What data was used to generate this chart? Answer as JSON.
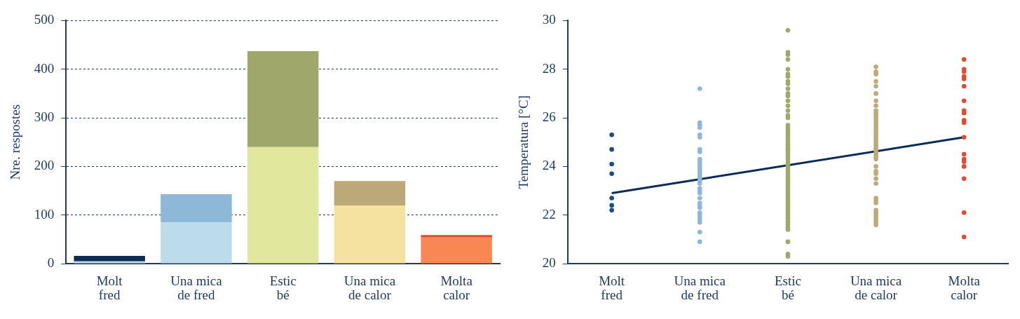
{
  "chart_data": [
    {
      "type": "bar",
      "ylabel": "Nre. respostes",
      "categories": [
        "Molt fred",
        "Una mica de fred",
        "Estic bé",
        "Una mica de calor",
        "Molta calor"
      ],
      "stacked": true,
      "ylim": [
        0,
        500
      ],
      "yticks": [
        0,
        100,
        200,
        300,
        400,
        500
      ],
      "grid": "y",
      "legend": false,
      "series": [
        {
          "colors": [
            "#bcdcec",
            "#bcdcec",
            "#e1e89e",
            "#f6e2a0",
            "#f88754"
          ],
          "values": [
            5,
            85,
            240,
            119,
            54
          ]
        },
        {
          "colors": [
            "#0b2c50",
            "#8db8d8",
            "#9fa86a",
            "#bca978",
            "#e04a30"
          ],
          "values": [
            11,
            58,
            197,
            51,
            5
          ]
        }
      ]
    },
    {
      "type": "scatter",
      "ylabel": "Temperatura [°C]",
      "categories": [
        "Molt fred",
        "Una mica de fred",
        "Estic bé",
        "Una mica de calor",
        "Molta calor"
      ],
      "ylim": [
        20,
        30
      ],
      "yticks": [
        20,
        22,
        24,
        26,
        28,
        30
      ],
      "grid": false,
      "legend": false,
      "marker": "circle",
      "series": [
        {
          "color": "#1a4c85",
          "x": [
            "Molt fred",
            "Molt fred",
            "Molt fred",
            "Molt fred",
            "Molt fred",
            "Molt fred",
            "Molt fred"
          ],
          "values": [
            25.3,
            24.7,
            24.1,
            23.7,
            22.7,
            22.4,
            22.2
          ]
        },
        {
          "color": "#8db8dc",
          "x": [
            "Una mica de fred",
            "Una mica de fred",
            "Una mica de fred",
            "Una mica de fred",
            "Una mica de fred",
            "Una mica de fred",
            "Una mica de fred",
            "Una mica de fred",
            "Una mica de fred",
            "Una mica de fred",
            "Una mica de fred",
            "Una mica de fred",
            "Una mica de fred",
            "Una mica de fred",
            "Una mica de fred",
            "Una mica de fred",
            "Una mica de fred",
            "Una mica de fred",
            "Una mica de fred",
            "Una mica de fred",
            "Una mica de fred",
            "Una mica de fred",
            "Una mica de fred",
            "Una mica de fred",
            "Una mica de fred",
            "Una mica de fred",
            "Una mica de fred",
            "Una mica de fred",
            "Una mica de fred",
            "Una mica de fred",
            "Una mica de fred",
            "Una mica de fred",
            "Una mica de fred"
          ],
          "values": [
            27.2,
            25.8,
            25.7,
            25.6,
            25.3,
            25.2,
            24.7,
            24.6,
            24.3,
            24.2,
            24.1,
            24.0,
            23.9,
            23.8,
            23.7,
            23.6,
            23.5,
            23.4,
            23.3,
            23.1,
            23.0,
            22.9,
            22.7,
            22.5,
            22.4,
            22.3,
            22.1,
            22.0,
            21.9,
            21.8,
            21.7,
            21.3,
            20.9
          ]
        },
        {
          "color": "#a0a86a",
          "x": [
            "Estic bé",
            "Estic bé",
            "Estic bé",
            "Estic bé",
            "Estic bé",
            "Estic bé",
            "Estic bé",
            "Estic bé",
            "Estic bé",
            "Estic bé",
            "Estic bé",
            "Estic bé",
            "Estic bé",
            "Estic bé",
            "Estic bé",
            "Estic bé",
            "Estic bé",
            "Estic bé",
            "Estic bé",
            "Estic bé",
            "Estic bé",
            "Estic bé",
            "Estic bé",
            "Estic bé",
            "Estic bé",
            "Estic bé",
            "Estic bé",
            "Estic bé",
            "Estic bé",
            "Estic bé",
            "Estic bé",
            "Estic bé",
            "Estic bé",
            "Estic bé",
            "Estic bé",
            "Estic bé",
            "Estic bé",
            "Estic bé",
            "Estic bé",
            "Estic bé",
            "Estic bé",
            "Estic bé",
            "Estic bé",
            "Estic bé",
            "Estic bé",
            "Estic bé",
            "Estic bé",
            "Estic bé",
            "Estic bé",
            "Estic bé",
            "Estic bé",
            "Estic bé",
            "Estic bé",
            "Estic bé",
            "Estic bé",
            "Estic bé",
            "Estic bé",
            "Estic bé",
            "Estic bé",
            "Estic bé",
            "Estic bé",
            "Estic bé",
            "Estic bé",
            "Estic bé"
          ],
          "values": [
            29.6,
            28.7,
            28.6,
            28.4,
            28.0,
            27.8,
            27.7,
            27.5,
            27.4,
            27.2,
            27.0,
            26.9,
            26.7,
            26.5,
            26.3,
            26.1,
            26.0,
            25.7,
            25.6,
            25.5,
            25.4,
            25.3,
            25.2,
            25.1,
            25.0,
            24.9,
            24.8,
            24.7,
            24.6,
            24.5,
            24.4,
            24.3,
            24.2,
            24.1,
            24.0,
            23.9,
            23.8,
            23.7,
            23.6,
            23.5,
            23.4,
            23.3,
            23.2,
            23.1,
            23.0,
            22.9,
            22.8,
            22.7,
            22.6,
            22.5,
            22.4,
            22.3,
            22.2,
            22.1,
            22.0,
            21.9,
            21.8,
            21.7,
            21.6,
            21.5,
            21.4,
            20.9,
            20.4,
            20.3
          ]
        },
        {
          "color": "#bcab78",
          "x": [
            "Una mica de calor",
            "Una mica de calor",
            "Una mica de calor",
            "Una mica de calor",
            "Una mica de calor",
            "Una mica de calor",
            "Una mica de calor",
            "Una mica de calor",
            "Una mica de calor",
            "Una mica de calor",
            "Una mica de calor",
            "Una mica de calor",
            "Una mica de calor",
            "Una mica de calor",
            "Una mica de calor",
            "Una mica de calor",
            "Una mica de calor",
            "Una mica de calor",
            "Una mica de calor",
            "Una mica de calor",
            "Una mica de calor",
            "Una mica de calor",
            "Una mica de calor",
            "Una mica de calor",
            "Una mica de calor",
            "Una mica de calor",
            "Una mica de calor",
            "Una mica de calor",
            "Una mica de calor",
            "Una mica de calor",
            "Una mica de calor",
            "Una mica de calor",
            "Una mica de calor",
            "Una mica de calor",
            "Una mica de calor",
            "Una mica de calor",
            "Una mica de calor",
            "Una mica de calor",
            "Una mica de calor",
            "Una mica de calor",
            "Una mica de calor",
            "Una mica de calor",
            "Una mica de calor",
            "Una mica de calor"
          ],
          "values": [
            28.1,
            27.9,
            27.8,
            27.5,
            27.3,
            27.0,
            26.7,
            26.5,
            26.3,
            26.2,
            26.1,
            26.0,
            25.9,
            25.8,
            25.7,
            25.6,
            25.5,
            25.4,
            25.3,
            25.2,
            25.1,
            25.0,
            24.9,
            24.8,
            24.7,
            24.6,
            24.5,
            24.4,
            24.3,
            24.0,
            23.8,
            23.7,
            23.5,
            23.3,
            22.7,
            22.6,
            22.5,
            22.2,
            22.1,
            22.0,
            21.9,
            21.8,
            21.7,
            21.6
          ]
        },
        {
          "color": "#e24a33",
          "x": [
            "Molta calor",
            "Molta calor",
            "Molta calor",
            "Molta calor",
            "Molta calor",
            "Molta calor",
            "Molta calor",
            "Molta calor",
            "Molta calor",
            "Molta calor",
            "Molta calor",
            "Molta calor",
            "Molta calor",
            "Molta calor",
            "Molta calor",
            "Molta calor",
            "Molta calor",
            "Molta calor",
            "Molta calor"
          ],
          "values": [
            28.4,
            28.0,
            27.9,
            27.7,
            27.6,
            27.3,
            26.7,
            26.3,
            26.2,
            25.9,
            25.8,
            25.2,
            24.5,
            24.3,
            24.2,
            24.0,
            23.5,
            22.1,
            21.1
          ]
        },
        {
          "type": "line",
          "color": "#0b2c5a",
          "marker": "none",
          "x": [
            "Molt fred",
            "Molta calor"
          ],
          "values": [
            22.9,
            25.2
          ]
        }
      ]
    }
  ]
}
